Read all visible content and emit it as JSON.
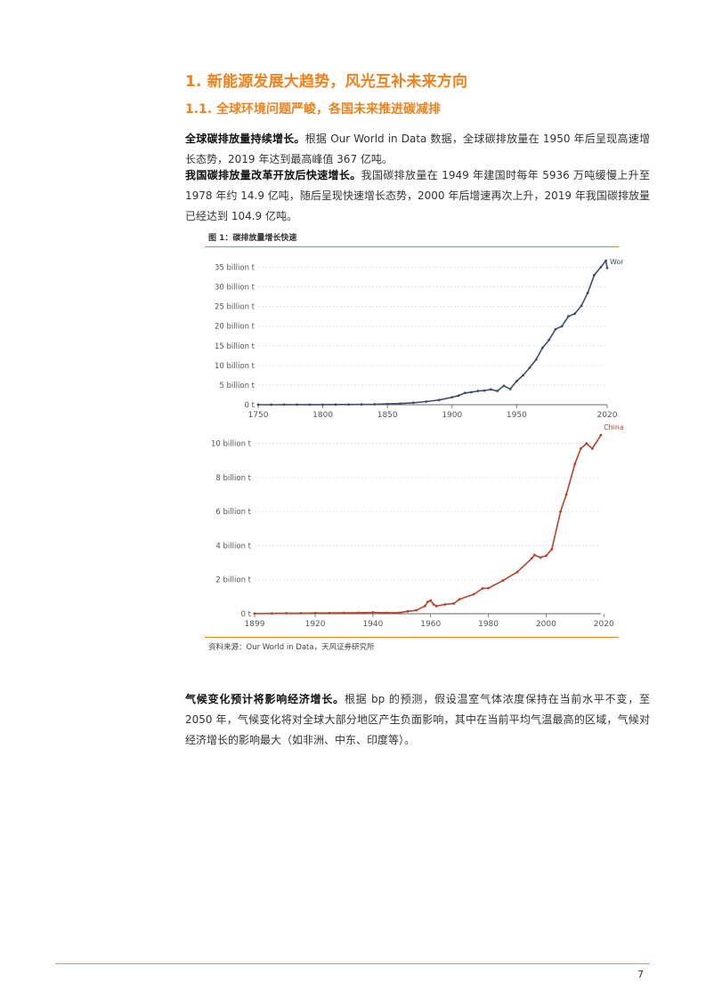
{
  "heading1": "1. 新能源发展大趋势，风光互补未来方向",
  "heading2": "1.1. 全球环境问题严峻，各国未来推进碳减排",
  "para1": {
    "bold": "全球碳排放量持续增长。",
    "text": "根据 Our World in Data 数据，全球碳排放量在 1950 年后呈现高速增长态势，2019 年达到最高峰值 367 亿吨。"
  },
  "para2": {
    "bold": "我国碳排放量改革开放后快速增长。",
    "text": "我国碳排放量在 1949 年建国时每年 5936 万吨缓慢上升至 1978 年约 14.9 亿吨，随后呈现快速增长态势，2000 年后增速再次上升，2019 年我国碳排放量已经达到 104.9 亿吨。"
  },
  "para3": {
    "bold": "气候变化预计将影响经济增长。",
    "text": "根据 bp 的预测，假设温室气体浓度保持在当前水平不变，至 2050 年，气候变化将对全球大部分地区产生负面影响，其中在当前平均气温最高的区域，气候对经济增长的影响最大（如非洲、中东、印度等）。"
  },
  "figure": {
    "title": "图 1：碳排放量增长快速",
    "source": "资料来源：Our World in Data，天风证券研究所"
  },
  "page_number": "7",
  "chart_data": [
    {
      "type": "line",
      "series": [
        {
          "name": "World",
          "color": "#3d4f6e"
        }
      ],
      "x": [
        1750,
        1760,
        1770,
        1780,
        1790,
        1800,
        1810,
        1820,
        1830,
        1840,
        1850,
        1860,
        1870,
        1880,
        1890,
        1900,
        1905,
        1910,
        1915,
        1920,
        1925,
        1930,
        1935,
        1940,
        1945,
        1950,
        1955,
        1960,
        1965,
        1970,
        1975,
        1980,
        1985,
        1990,
        1995,
        2000,
        2005,
        2010,
        2015,
        2019,
        2020
      ],
      "values": [
        0.01,
        0.01,
        0.02,
        0.02,
        0.03,
        0.03,
        0.04,
        0.05,
        0.07,
        0.1,
        0.2,
        0.3,
        0.5,
        0.8,
        1.2,
        1.9,
        2.3,
        3.0,
        3.2,
        3.5,
        3.6,
        3.9,
        3.5,
        4.8,
        4.0,
        6.0,
        7.5,
        9.4,
        11.5,
        14.5,
        16.5,
        19.2,
        20.0,
        22.5,
        23.2,
        25.2,
        28.5,
        33.0,
        35.0,
        36.7,
        34.8
      ],
      "ylim": [
        0,
        36.7
      ],
      "xticks": [
        1750,
        1800,
        1850,
        1900,
        1950,
        2020
      ],
      "yticks": [
        {
          "v": 0,
          "label": "0 t"
        },
        {
          "v": 5,
          "label": "5 billion t"
        },
        {
          "v": 10,
          "label": "10 billion t"
        },
        {
          "v": 15,
          "label": "15 billion t"
        },
        {
          "v": 20,
          "label": "20 billion t"
        },
        {
          "v": 25,
          "label": "25 billion t"
        },
        {
          "v": 30,
          "label": "30 billion t"
        },
        {
          "v": 35,
          "label": "35 billion t"
        }
      ],
      "grid": true
    },
    {
      "type": "line",
      "series": [
        {
          "name": "China",
          "color": "#b8412c"
        }
      ],
      "x": [
        1899,
        1905,
        1910,
        1915,
        1920,
        1925,
        1930,
        1935,
        1940,
        1945,
        1949,
        1952,
        1955,
        1958,
        1959,
        1960,
        1961,
        1962,
        1965,
        1968,
        1970,
        1975,
        1978,
        1980,
        1985,
        1990,
        1995,
        1996,
        1998,
        2000,
        2002,
        2005,
        2007,
        2010,
        2012,
        2014,
        2016,
        2019
      ],
      "values": [
        0.01,
        0.02,
        0.03,
        0.03,
        0.04,
        0.04,
        0.05,
        0.06,
        0.08,
        0.06,
        0.06,
        0.14,
        0.2,
        0.45,
        0.7,
        0.78,
        0.55,
        0.45,
        0.55,
        0.6,
        0.85,
        1.15,
        1.49,
        1.5,
        1.95,
        2.45,
        3.25,
        3.45,
        3.3,
        3.4,
        3.8,
        6.0,
        7.0,
        8.8,
        9.7,
        10.0,
        9.7,
        10.49
      ],
      "ylim": [
        0,
        10.5
      ],
      "xticks": [
        1899,
        1920,
        1940,
        1960,
        1980,
        2000,
        2020
      ],
      "yticks": [
        {
          "v": 0,
          "label": "0 t"
        },
        {
          "v": 2,
          "label": "2 billion t"
        },
        {
          "v": 4,
          "label": "4 billion t"
        },
        {
          "v": 6,
          "label": "6 billion t"
        },
        {
          "v": 8,
          "label": "8 billion t"
        },
        {
          "v": 10,
          "label": "10 billion t"
        }
      ],
      "grid": true
    }
  ]
}
